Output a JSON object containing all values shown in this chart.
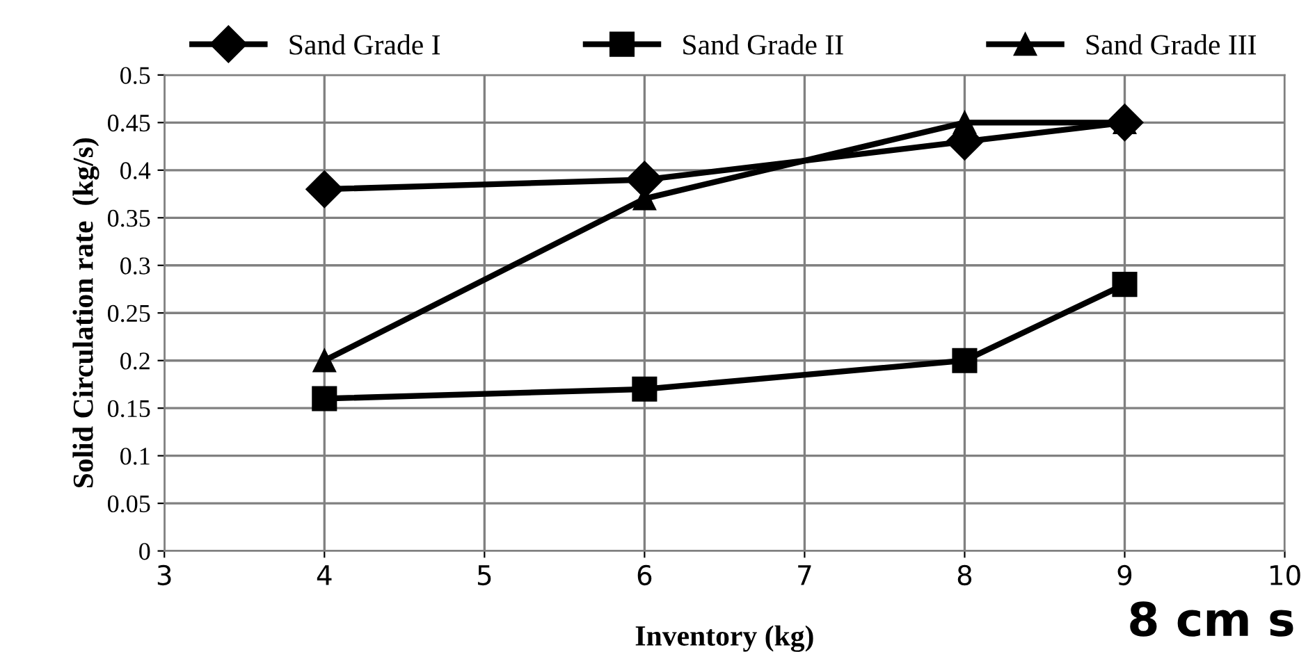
{
  "chart_data": {
    "type": "line",
    "xlabel": "Inventory (kg)",
    "ylabel": "Solid Circulation rate  (kg/s)",
    "x": [
      4,
      6,
      8,
      9
    ],
    "series": [
      {
        "name": "Sand Grade I",
        "color": "#000000",
        "marker": "diamond",
        "values": [
          0.38,
          0.39,
          0.43,
          0.45
        ]
      },
      {
        "name": "Sand Grade II",
        "color": "#000000",
        "marker": "square",
        "values": [
          0.16,
          0.17,
          0.2,
          0.28
        ]
      },
      {
        "name": "Sand Grade III",
        "color": "#000000",
        "marker": "triangle",
        "values": [
          0.2,
          0.37,
          0.45,
          0.45
        ]
      }
    ],
    "xlim": [
      3,
      10
    ],
    "xticks": [
      3,
      4,
      5,
      6,
      7,
      8,
      9,
      10
    ],
    "ylim": [
      0,
      0.5
    ],
    "yticks": [
      {
        "value": 0,
        "label": "0"
      },
      {
        "value": 0.05,
        "label": "0.05"
      },
      {
        "value": 0.1,
        "label": "0.1"
      },
      {
        "value": 0.15,
        "label": "0.15"
      },
      {
        "value": 0.2,
        "label": "0.2"
      },
      {
        "value": 0.25,
        "label": "0.25"
      },
      {
        "value": 0.3,
        "label": "0.3"
      },
      {
        "value": 0.35,
        "label": "0.35"
      },
      {
        "value": 0.4,
        "label": "0.4"
      },
      {
        "value": 0.45,
        "label": "0.45"
      },
      {
        "value": 0.5,
        "label": "0.5"
      }
    ],
    "grid": true,
    "legend": "top",
    "line_style": "solid",
    "annotations": [
      "8 cm s"
    ]
  }
}
